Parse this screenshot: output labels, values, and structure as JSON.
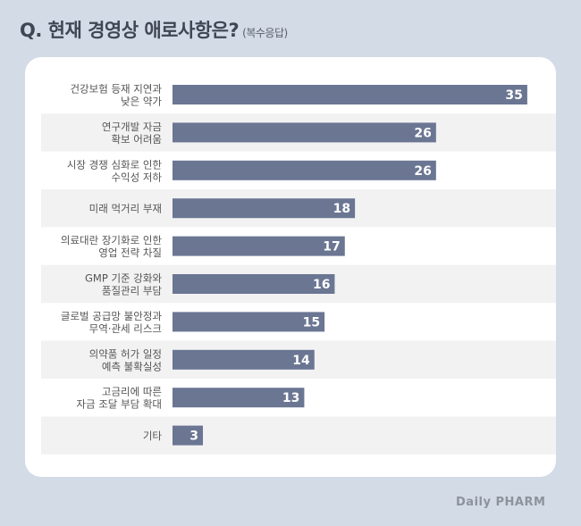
{
  "header": {
    "title": "Q. 현재 경영상 애로사항은?",
    "subtitle": "(복수응답)"
  },
  "logo": {
    "text": "Daily PHARM"
  },
  "chart_data": {
    "type": "bar",
    "orientation": "horizontal",
    "categories": [
      [
        "건강보험 등재 지연과",
        "낮은 약가"
      ],
      [
        "연구개발 자금",
        "확보 어려움"
      ],
      [
        "시장 경쟁 심화로 인한",
        "수익성 저하"
      ],
      [
        "미래 먹거리 부재"
      ],
      [
        "의료대란 장기화로 인한",
        "영업 전략 차질"
      ],
      [
        "GMP 기준 강화와",
        "품질관리 부담"
      ],
      [
        "글로벌 공급망 불안정과",
        "무역·관세 리스크"
      ],
      [
        "의약품 허가 일정",
        "예측 불확실성"
      ],
      [
        "고금리에 따른",
        "자금 조달 부담 확대"
      ],
      [
        "기타"
      ]
    ],
    "values": [
      35,
      26,
      26,
      18,
      17,
      16,
      15,
      14,
      13,
      3
    ],
    "colors": {
      "bar": "#6b7693",
      "band": "#f2f2f2",
      "label": "#555555",
      "value": "#ffffff"
    },
    "grid": false,
    "legend": "none"
  }
}
